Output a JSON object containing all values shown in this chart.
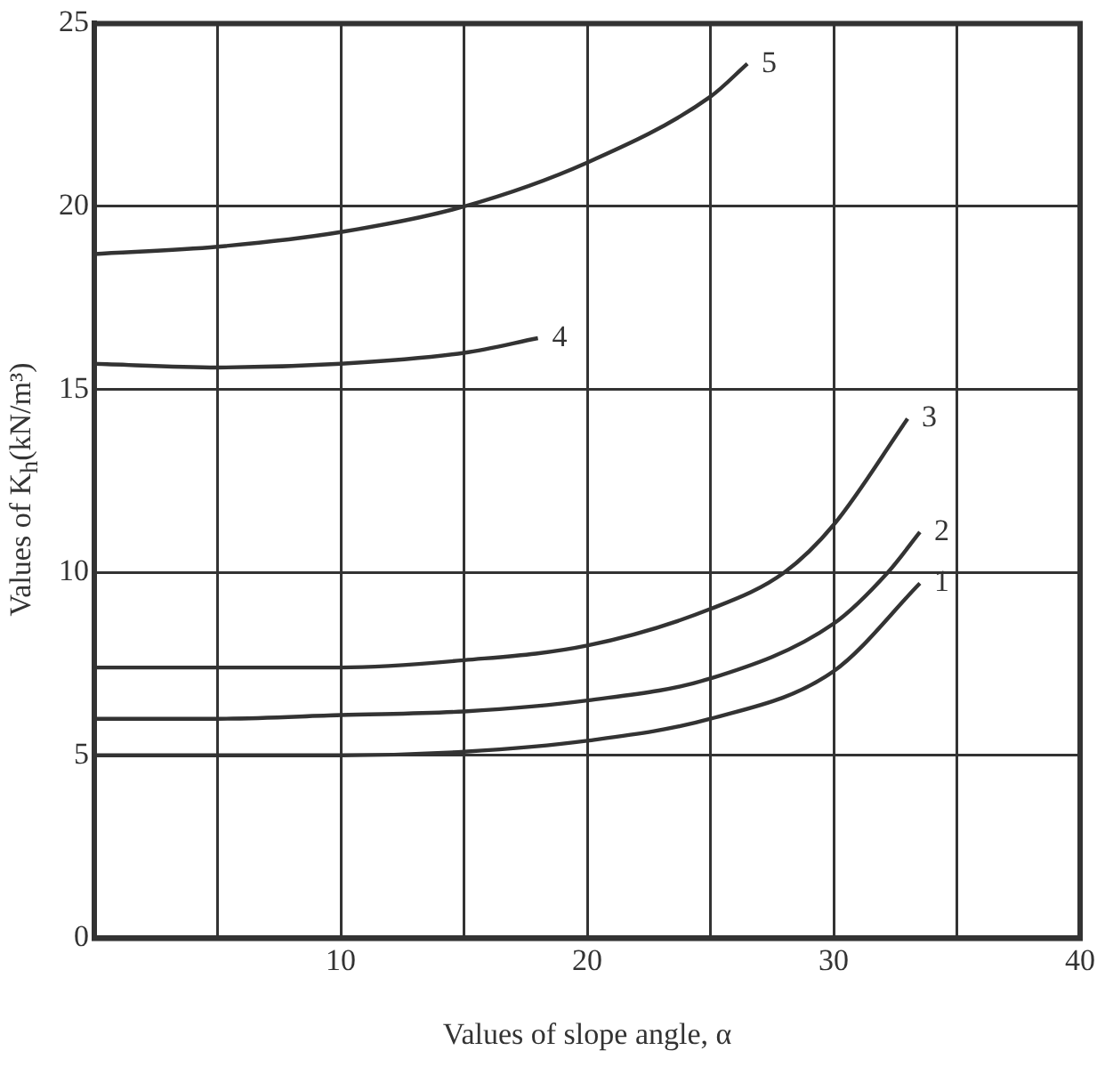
{
  "chart_data": {
    "type": "line",
    "xlabel": "Values of slope angle, α",
    "ylabel": "Values of K$_{h}$(kN/m³)",
    "xlim": [
      0,
      40
    ],
    "ylim": [
      0,
      25
    ],
    "xticks": [
      {
        "value": 0,
        "label": null
      },
      {
        "value": 5,
        "label": null
      },
      10,
      {
        "value": 15,
        "label": null
      },
      20,
      {
        "value": 25,
        "label": null
      },
      30,
      {
        "value": 35,
        "label": null
      },
      40
    ],
    "yticks": [
      0,
      5,
      10,
      15,
      20,
      25
    ],
    "grid": true,
    "legend": false,
    "marker": "none",
    "line_style": "solid",
    "series": [
      {
        "name": "1",
        "color": "#333333",
        "x": [
          0,
          5,
          10,
          15,
          20,
          25,
          30,
          33.5
        ],
        "values": [
          5.0,
          5.0,
          5.0,
          5.1,
          5.4,
          6.0,
          7.3,
          9.7
        ]
      },
      {
        "name": "2",
        "color": "#333333",
        "x": [
          0,
          5,
          10,
          15,
          20,
          25,
          30,
          32.2,
          33.5
        ],
        "values": [
          6.0,
          6.0,
          6.1,
          6.2,
          6.5,
          7.1,
          8.6,
          10.0,
          11.1
        ]
      },
      {
        "name": "3",
        "color": "#333333",
        "x": [
          0,
          5,
          10,
          15,
          20,
          25,
          28,
          30,
          33
        ],
        "values": [
          7.4,
          7.4,
          7.4,
          7.6,
          8.0,
          9.0,
          10.0,
          11.3,
          14.2
        ]
      },
      {
        "name": "4",
        "color": "#333333",
        "x": [
          0,
          5,
          10,
          15,
          18
        ],
        "values": [
          15.7,
          15.6,
          15.7,
          16.0,
          16.4
        ]
      },
      {
        "name": "5",
        "color": "#333333",
        "x": [
          0,
          5,
          10,
          15,
          20,
          25,
          26.5
        ],
        "values": [
          18.7,
          18.9,
          19.3,
          20.0,
          21.2,
          23.0,
          23.9
        ]
      }
    ]
  }
}
